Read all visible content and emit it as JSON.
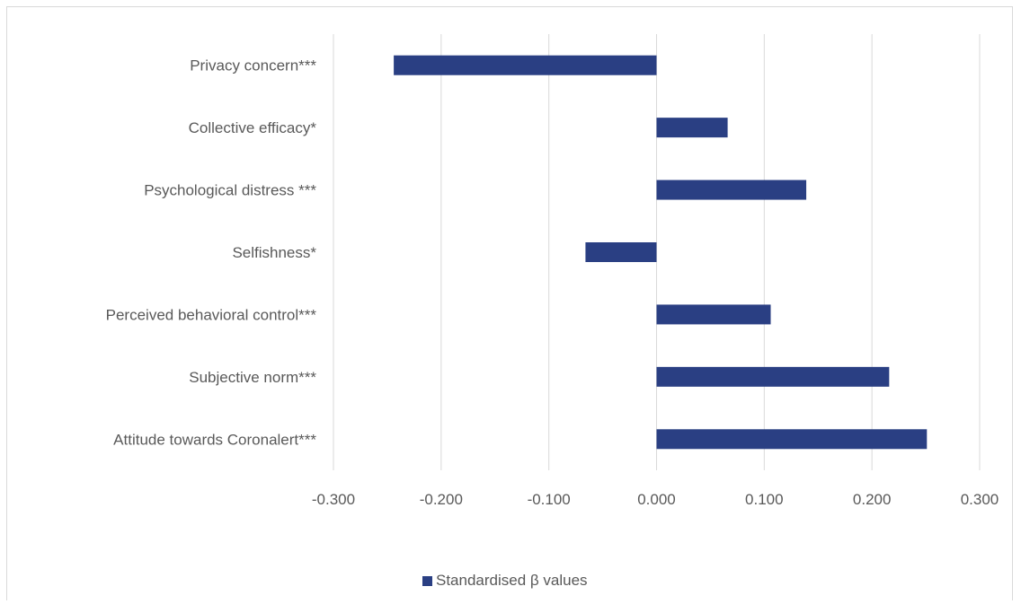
{
  "chart_data": {
    "type": "bar",
    "orientation": "horizontal",
    "categories": [
      "Privacy concern***",
      "Collective efficacy*",
      "Psychological  distress ***",
      "Selfishness*",
      "Perceived behavioral control***",
      "Subjective norm***",
      "Attitude towards Coronalert***"
    ],
    "series": [
      {
        "name": "Standardised β values",
        "values": [
          -0.244,
          0.066,
          0.139,
          -0.066,
          0.106,
          0.216,
          0.251
        ]
      }
    ],
    "xlim": [
      -0.3,
      0.3
    ],
    "xticks": [
      "-0.300",
      "-0.200",
      "-0.100",
      "0.000",
      "0.100",
      "0.200",
      "0.300"
    ],
    "grid": true,
    "legend_position": "bottom",
    "bar_color": "#2a3f83"
  }
}
